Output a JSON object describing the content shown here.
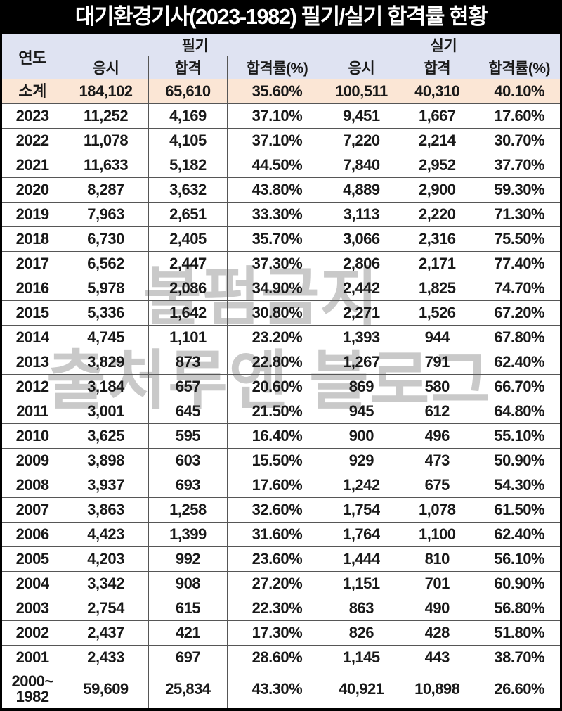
{
  "watermark": {
    "line1": "불펌금지",
    "line2": "출처루엔 블로그"
  },
  "colors": {
    "title_bg": "#000000",
    "title_text": "#ffffff",
    "header_bg": "#dfe3f2",
    "subtotal_bg": "#fbe6d5",
    "grid_line": "#565656",
    "cell_text": "#191919",
    "watermark_text": "#c9c9c9"
  },
  "chart_data": {
    "type": "table",
    "title": "대기환경기사(2023-1982) 필기/실기 합격률 현황",
    "column_groups": [
      {
        "label": "연도",
        "span": 1
      },
      {
        "label": "필기",
        "span": 3
      },
      {
        "label": "실기",
        "span": 3
      }
    ],
    "sub_columns": [
      "응시",
      "합격",
      "합격률(%)",
      "응시",
      "합격",
      "합격률(%)"
    ],
    "rows": [
      {
        "type": "subtotal",
        "label": "소계",
        "values": [
          "184,102",
          "65,610",
          "35.60%",
          "100,511",
          "40,310",
          "40.10%"
        ]
      },
      {
        "type": "year",
        "label": "2023",
        "values": [
          "11,252",
          "4,169",
          "37.10%",
          "9,451",
          "1,667",
          "17.60%"
        ]
      },
      {
        "type": "year",
        "label": "2022",
        "values": [
          "11,078",
          "4,105",
          "37.10%",
          "7,220",
          "2,214",
          "30.70%"
        ]
      },
      {
        "type": "year",
        "label": "2021",
        "values": [
          "11,633",
          "5,182",
          "44.50%",
          "7,840",
          "2,952",
          "37.70%"
        ]
      },
      {
        "type": "year",
        "label": "2020",
        "values": [
          "8,287",
          "3,632",
          "43.80%",
          "4,889",
          "2,900",
          "59.30%"
        ]
      },
      {
        "type": "year",
        "label": "2019",
        "values": [
          "7,963",
          "2,651",
          "33.30%",
          "3,113",
          "2,220",
          "71.30%"
        ]
      },
      {
        "type": "year",
        "label": "2018",
        "values": [
          "6,730",
          "2,405",
          "35.70%",
          "3,066",
          "2,316",
          "75.50%"
        ]
      },
      {
        "type": "year",
        "label": "2017",
        "values": [
          "6,562",
          "2,447",
          "37.30%",
          "2,806",
          "2,171",
          "77.40%"
        ]
      },
      {
        "type": "year",
        "label": "2016",
        "values": [
          "5,978",
          "2,086",
          "34.90%",
          "2,442",
          "1,825",
          "74.70%"
        ]
      },
      {
        "type": "year",
        "label": "2015",
        "values": [
          "5,336",
          "1,642",
          "30.80%",
          "2,271",
          "1,526",
          "67.20%"
        ]
      },
      {
        "type": "year",
        "label": "2014",
        "values": [
          "4,745",
          "1,101",
          "23.20%",
          "1,393",
          "944",
          "67.80%"
        ]
      },
      {
        "type": "year",
        "label": "2013",
        "values": [
          "3,829",
          "873",
          "22.80%",
          "1,267",
          "791",
          "62.40%"
        ]
      },
      {
        "type": "year",
        "label": "2012",
        "values": [
          "3,184",
          "657",
          "20.60%",
          "869",
          "580",
          "66.70%"
        ]
      },
      {
        "type": "year",
        "label": "2011",
        "values": [
          "3,001",
          "645",
          "21.50%",
          "945",
          "612",
          "64.80%"
        ]
      },
      {
        "type": "year",
        "label": "2010",
        "values": [
          "3,625",
          "595",
          "16.40%",
          "900",
          "496",
          "55.10%"
        ]
      },
      {
        "type": "year",
        "label": "2009",
        "values": [
          "3,898",
          "603",
          "15.50%",
          "929",
          "473",
          "50.90%"
        ]
      },
      {
        "type": "year",
        "label": "2008",
        "values": [
          "3,937",
          "693",
          "17.60%",
          "1,242",
          "675",
          "54.30%"
        ]
      },
      {
        "type": "year",
        "label": "2007",
        "values": [
          "3,863",
          "1,258",
          "32.60%",
          "1,754",
          "1,078",
          "61.50%"
        ]
      },
      {
        "type": "year",
        "label": "2006",
        "values": [
          "4,423",
          "1,399",
          "31.60%",
          "1,764",
          "1,100",
          "62.40%"
        ]
      },
      {
        "type": "year",
        "label": "2005",
        "values": [
          "4,203",
          "992",
          "23.60%",
          "1,444",
          "810",
          "56.10%"
        ]
      },
      {
        "type": "year",
        "label": "2004",
        "values": [
          "3,342",
          "908",
          "27.20%",
          "1,151",
          "701",
          "60.90%"
        ]
      },
      {
        "type": "year",
        "label": "2003",
        "values": [
          "2,754",
          "615",
          "22.30%",
          "863",
          "490",
          "56.80%"
        ]
      },
      {
        "type": "year",
        "label": "2002",
        "values": [
          "2,437",
          "421",
          "17.30%",
          "826",
          "428",
          "51.80%"
        ]
      },
      {
        "type": "year",
        "label": "2001",
        "values": [
          "2,433",
          "697",
          "28.60%",
          "1,145",
          "443",
          "38.70%"
        ]
      },
      {
        "type": "range",
        "label": "2000~\n1982",
        "values": [
          "59,609",
          "25,834",
          "43.30%",
          "40,921",
          "10,898",
          "26.60%"
        ]
      }
    ]
  }
}
